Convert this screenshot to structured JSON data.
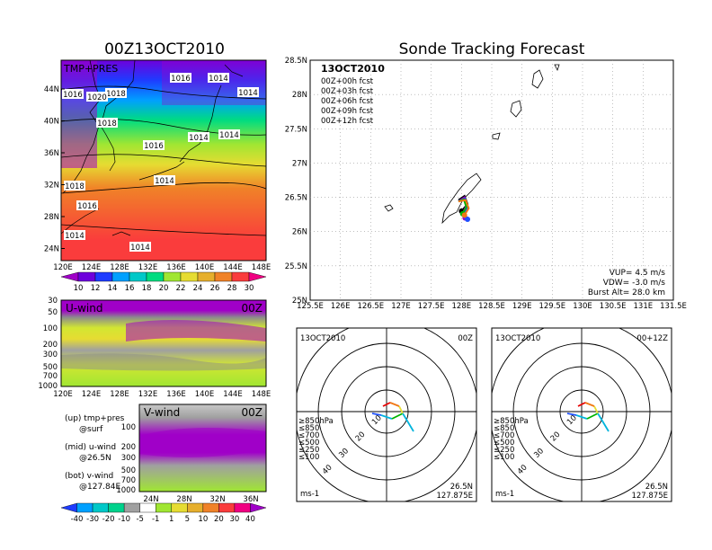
{
  "main_title": "00Z13OCT2010",
  "right_title": "Sonde Tracking Forecast",
  "map_panel": {
    "label": "TMP+PRES",
    "lat_ticks": [
      "44N",
      "40N",
      "36N",
      "32N",
      "28N",
      "24N"
    ],
    "lon_ticks": [
      "120E",
      "124E",
      "128E",
      "132E",
      "136E",
      "140E",
      "144E",
      "148E"
    ],
    "isobars": [
      "1018",
      "1016",
      "1014",
      "1016",
      "1020",
      "1018",
      "1014",
      "1016",
      "1014",
      "1014",
      "1018",
      "1016",
      "1014",
      "1014",
      "1014"
    ],
    "colorbar_labels": [
      "10",
      "12",
      "14",
      "16",
      "18",
      "20",
      "22",
      "24",
      "26",
      "28",
      "30"
    ],
    "colorbar_colors": [
      "#a000c8",
      "#6e00dc",
      "#1e3cff",
      "#00a0ff",
      "#00c8c8",
      "#00dc80",
      "#a0e632",
      "#e6dc32",
      "#e6af2d",
      "#f08228",
      "#fa3c3c",
      "#f00082"
    ]
  },
  "u_panel": {
    "label": "U-wind",
    "time": "00Z",
    "p_ticks": [
      "30",
      "50",
      "100",
      "200",
      "300",
      "500",
      "700",
      "1000"
    ],
    "lon_ticks": [
      "120E",
      "124E",
      "128E",
      "132E",
      "136E",
      "140E",
      "144E",
      "148E"
    ]
  },
  "v_panel": {
    "label": "V-wind",
    "time": "00Z",
    "p_ticks": [
      "100",
      "200",
      "300",
      "500",
      "700",
      "1000"
    ],
    "lat_ticks": [
      "24N",
      "28N",
      "32N",
      "36N"
    ]
  },
  "legend_text": {
    "up": "(up) tmp+pres",
    "up2": "@surf",
    "mid": "(mid) u-wind",
    "mid2": "@26.5N",
    "bot": "(bot) v-wind",
    "bot2": "@127.84E"
  },
  "wind_colorbar": {
    "labels": [
      "-40",
      "-30",
      "-20",
      "-10",
      "-5",
      "-1",
      "1",
      "5",
      "10",
      "20",
      "30",
      "40"
    ],
    "colors": [
      "#1e3cff",
      "#00a0ff",
      "#00c8c8",
      "#00d28c",
      "#a0a0a0",
      "#ffffff",
      "#a0e632",
      "#e6dc32",
      "#e6af2d",
      "#f08228",
      "#fa3c3c",
      "#f00082",
      "#a000c8"
    ]
  },
  "chart_data": {
    "type": "line",
    "title": "Sonde Tracking Forecast",
    "date": "13OCT2010",
    "xlabels": [
      "125.5E",
      "126E",
      "126.5E",
      "127E",
      "127.5E",
      "128E",
      "128.5E",
      "129E",
      "129.5E",
      "130E",
      "130.5E",
      "131E",
      "131.5E"
    ],
    "ylabels": [
      "28.5N",
      "28N",
      "27.5N",
      "27N",
      "26.5N",
      "26N",
      "25.5N",
      "25N"
    ],
    "xlim": [
      125.5,
      131.5
    ],
    "ylim": [
      25,
      28.5
    ],
    "series": [
      {
        "name": "00Z+00h fcst",
        "color": "#000000",
        "points": [
          [
            127.95,
            26.46
          ],
          [
            128.05,
            26.52
          ],
          [
            128.1,
            26.4
          ],
          [
            128.0,
            26.3
          ]
        ]
      },
      {
        "name": "00Z+03h fcst",
        "color": "#a000c8",
        "points": [
          [
            127.95,
            26.44
          ],
          [
            128.05,
            26.5
          ],
          [
            128.08,
            26.38
          ],
          [
            128.02,
            26.26
          ],
          [
            128.06,
            26.2
          ]
        ]
      },
      {
        "name": "00Z+06h fcst",
        "color": "#1e50ff",
        "points": [
          [
            127.95,
            26.44
          ],
          [
            128.06,
            26.48
          ],
          [
            128.1,
            26.35
          ],
          [
            128.03,
            26.22
          ],
          [
            128.1,
            26.18
          ]
        ]
      },
      {
        "name": "00Z+09h fcst",
        "color": "#00b400",
        "points": [
          [
            127.95,
            26.44
          ],
          [
            128.04,
            26.47
          ],
          [
            128.08,
            26.36
          ],
          [
            128.02,
            26.26
          ]
        ]
      },
      {
        "name": "00Z+12h fcst",
        "color": "#f07814",
        "points": [
          [
            127.95,
            26.44
          ],
          [
            128.07,
            26.46
          ],
          [
            128.12,
            26.34
          ],
          [
            128.05,
            26.24
          ]
        ]
      }
    ],
    "stats": {
      "vup": "VUP=  4.5  m/s",
      "vdw": "VDW= -3.0  m/s",
      "burst": "Burst Alt=  28.0  km"
    }
  },
  "polar_left": {
    "date": "13OCT2010",
    "time": "00Z",
    "rings": [
      "10",
      "20",
      "30",
      "40"
    ],
    "loc1": "26.5N",
    "loc2": "127.875E",
    "unit": "ms-1",
    "legend": [
      {
        "t": "≥850hPa",
        "c": "#e60000"
      },
      {
        "t": "≤850",
        "c": "#f07814"
      },
      {
        "t": "≤700",
        "c": "#e6dc32"
      },
      {
        "t": "≤500",
        "c": "#00b400"
      },
      {
        "t": "≤250",
        "c": "#00b4dc"
      },
      {
        "t": "≤100",
        "c": "#1e50ff"
      }
    ]
  },
  "polar_right": {
    "date": "13OCT2010",
    "time": "00+12Z",
    "rings": [
      "10",
      "20",
      "30",
      "40"
    ],
    "loc1": "26.5N",
    "loc2": "127.875E",
    "unit": "ms-1",
    "legend": [
      {
        "t": "≥850hPa",
        "c": "#e60000"
      },
      {
        "t": "≤850",
        "c": "#f07814"
      },
      {
        "t": "≤700",
        "c": "#e6dc32"
      },
      {
        "t": "≤500",
        "c": "#00b400"
      },
      {
        "t": "≤250",
        "c": "#00b4dc"
      },
      {
        "t": "≤100",
        "c": "#1e50ff"
      }
    ]
  }
}
